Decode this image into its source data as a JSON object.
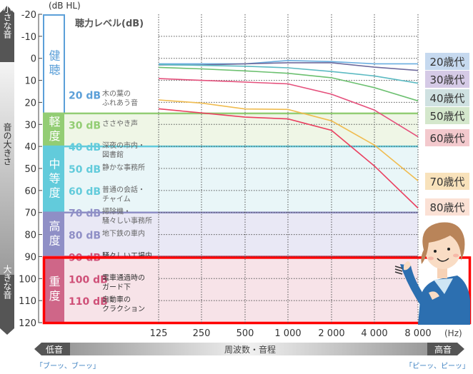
{
  "chart_data": {
    "type": "line",
    "title": "聴力レベル(dB)",
    "ylabel": "(dB HL)",
    "xlabel": "周波数・音程",
    "x_unit": "(Hz)",
    "x": [
      125,
      250,
      500,
      1000,
      2000,
      4000,
      8000
    ],
    "x_tick_labels": [
      "125",
      "250",
      "500",
      "1 000",
      "2 000",
      "4 000",
      "8 000"
    ],
    "ylim": [
      -20,
      120
    ],
    "y_ticks": [
      -20,
      -10,
      0,
      10,
      20,
      30,
      40,
      50,
      60,
      70,
      80,
      90,
      100,
      110,
      120
    ],
    "y_tick_labels": [
      "-20",
      "-10",
      "0",
      "10",
      "20",
      "30",
      "40",
      "50",
      "60",
      "70",
      "80",
      "90",
      "100",
      "110",
      "120"
    ],
    "grid": true,
    "series": [
      {
        "name": "20歳代",
        "color": "#6aaee0",
        "box": "#c6d9ef",
        "values": [
          2.5,
          2.5,
          2.5,
          1,
          1.5,
          2.5,
          2.5
        ]
      },
      {
        "name": "30歳代",
        "color": "#6e6a9c",
        "box": "#d5cae6",
        "values": [
          3,
          3,
          2.5,
          2,
          2,
          4,
          5.5
        ]
      },
      {
        "name": "40歳代",
        "color": "#5cbac2",
        "box": "#cfe1e1",
        "values": [
          2.8,
          3.2,
          3.6,
          4.3,
          6,
          8,
          11.3
        ]
      },
      {
        "name": "50歳代",
        "color": "#6cc070",
        "box": "#d4e7cc",
        "values": [
          4.1,
          4.8,
          5.7,
          6.8,
          8.8,
          13.3,
          19.3
        ]
      },
      {
        "name": "60歳代",
        "color": "#e5507c",
        "box": "#f3c9cd",
        "values": [
          9.2,
          10,
          10.8,
          11.6,
          16.3,
          23.5,
          35.6
        ]
      },
      {
        "name": "70歳代",
        "color": "#f0bc50",
        "box": "#f8e2bb",
        "values": [
          18.9,
          20.3,
          23,
          23.2,
          28.4,
          39.4,
          55.6
        ]
      },
      {
        "name": "80歳代",
        "color": "#ea4060",
        "box": "#fbe1d5",
        "values": [
          22.9,
          24.8,
          26.7,
          27.5,
          32.7,
          48.9,
          68
        ]
      }
    ],
    "bands": [
      {
        "label": "健聴",
        "range": [
          -20,
          25
        ],
        "color": "#5b9fd8",
        "fill": "#ffffff",
        "text_color": "#5b9fd8",
        "examples": [
          {
            "db": "20 dB",
            "text": [
              "木の葉の",
              "ふれあう音"
            ],
            "level": 20
          }
        ]
      },
      {
        "label": "軽度",
        "range": [
          25,
          40
        ],
        "color": "#93cd74",
        "fill": "#eff6e6",
        "text_color": "#93cd74",
        "examples": [
          {
            "db": "30 dB",
            "text": [
              "ささやき声"
            ],
            "level": 30
          }
        ]
      },
      {
        "label": "中等度",
        "range": [
          40,
          70
        ],
        "color": "#62cbdb",
        "fill": "#e9f6f8",
        "text_color": "#62cbdb",
        "examples": [
          {
            "db": "40 dB",
            "text": [
              "深夜の市内・",
              "図書館"
            ],
            "level": 40
          },
          {
            "db": "50 dB",
            "text": [
              "静かな事務所"
            ],
            "level": 50
          },
          {
            "db": "60 dB",
            "text": [
              "普通の会話・",
              "チャイム"
            ],
            "level": 60
          }
        ]
      },
      {
        "label": "高度",
        "range": [
          70,
          90
        ],
        "color": "#8f8fc6",
        "fill": "#e9e8f5",
        "text_color": "#8f8fc6",
        "examples": [
          {
            "db": "70 dB",
            "text": [
              "掃除機・",
              "騒々しい事務所"
            ],
            "level": 70
          },
          {
            "db": "80 dB",
            "text": [
              "地下鉄の車内"
            ],
            "level": 80
          }
        ]
      },
      {
        "label": "重度",
        "range": [
          90,
          120
        ],
        "color": "#cf6688",
        "fill": "#f7e3e8",
        "text_color": "#cf5078",
        "examples": [
          {
            "db": "90 dB",
            "text": [
              "騒々しい工場内"
            ],
            "level": 90
          },
          {
            "db": "100 dB",
            "text": [
              "電車通過時の",
              "ガード下"
            ],
            "level": 100
          },
          {
            "db": "110 dB",
            "text": [
              "自動車の",
              "クラクション"
            ],
            "level": 110
          }
        ]
      }
    ],
    "highlight_band": "重度",
    "highlight_color": "#ff0000"
  },
  "left_axis": {
    "top": "小さな音",
    "middle": "音の大きさ",
    "bottom": "大きな音"
  },
  "bottom_axis": {
    "low": "低音",
    "high": "高音",
    "low_sound": "「ブーッ、ブーッ」",
    "high_sound": "「ピーッ、ピーッ」"
  }
}
